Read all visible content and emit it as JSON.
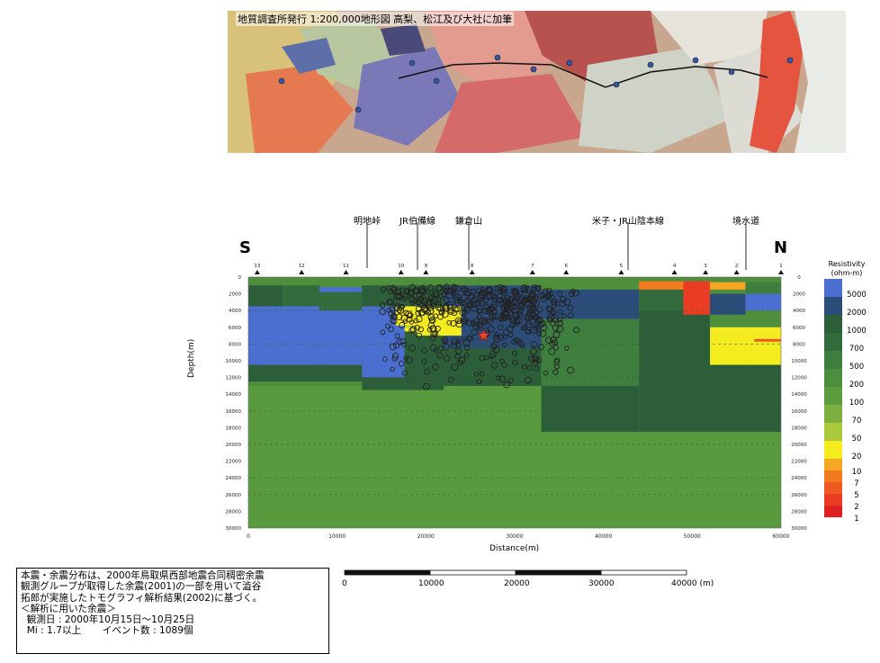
{
  "map": {
    "caption": "地質調査所発行 1:200,000地形図 高梨、松江及び大社に加筆"
  },
  "section": {
    "direction_left": "S",
    "direction_right": "N",
    "place_labels": [
      "明地峠",
      "JR伯備線",
      "鎌倉山",
      "米子・JR山陰本線",
      "境水道"
    ],
    "station_ids": [
      "13",
      "12",
      "11",
      "10",
      "9",
      "8",
      "7",
      "6",
      "5",
      "4",
      "3",
      "2",
      "1"
    ],
    "xlabel": "Distance(m)",
    "ylabel": "Depth(m)",
    "x_ticks": [
      "0",
      "10000",
      "20000",
      "30000",
      "40000",
      "50000",
      "60000"
    ],
    "y_ticks": [
      "0",
      "2000",
      "4000",
      "6000",
      "8000",
      "10000",
      "12000",
      "14000",
      "16000",
      "18000",
      "20000",
      "22000",
      "24000",
      "26000",
      "28000",
      "30000"
    ]
  },
  "legend": {
    "title": "Resistivity (ohm-m)",
    "labels": [
      "5000",
      "2000",
      "1000",
      "700",
      "500",
      "200",
      "100",
      "70",
      "50",
      "20",
      "10",
      "7",
      "5",
      "2",
      "1"
    ]
  },
  "scale_bar": {
    "labels": [
      "0",
      "10000",
      "20000",
      "30000",
      "40000 (m)"
    ]
  },
  "note": {
    "lines": [
      "本震・余震分布は、2000年鳥取県西部地震合同稠密余震",
      "観測グループが取得した余震(2001)の一部を用いて澁谷",
      "拓郎が実施したトモグラフィ解析結果(2002)に基づく。",
      "＜解析に用いた余震＞",
      "  観測日 : 2000年10月15日～10月25日",
      "  Mi : 1.7以上       イベント数 : 1089個"
    ]
  },
  "chart_data": {
    "type": "heatmap",
    "title": "",
    "xlabel": "Distance(m)",
    "ylabel": "Depth(m)",
    "xlim": [
      0,
      60000
    ],
    "ylim": [
      0,
      30000
    ],
    "y_inverted": true,
    "legend_placement": "right",
    "colorbar": {
      "title": "Resistivity (ohm-m)",
      "levels": [
        5000,
        2000,
        1000,
        700,
        500,
        200,
        100,
        70,
        50,
        20,
        10,
        7,
        5,
        2,
        1
      ],
      "colors": [
        "#4a6fd0",
        "#2c4c7a",
        "#2d5e3a",
        "#336b3d",
        "#3e7e3e",
        "#4a8e3e",
        "#5d9c3e",
        "#7cb03e",
        "#a9c83c",
        "#f5ec20",
        "#f5a623",
        "#f27a21",
        "#ef5a22",
        "#ea3b23",
        "#e02020"
      ]
    },
    "station_markers": [
      "13",
      "12",
      "11",
      "10",
      "9",
      "8",
      "7",
      "6",
      "5",
      "4",
      "3",
      "2",
      "1"
    ],
    "aftershocks": {
      "count": 1089,
      "magnitude_min": 1.7
    },
    "mainshock_marker": "star"
  }
}
